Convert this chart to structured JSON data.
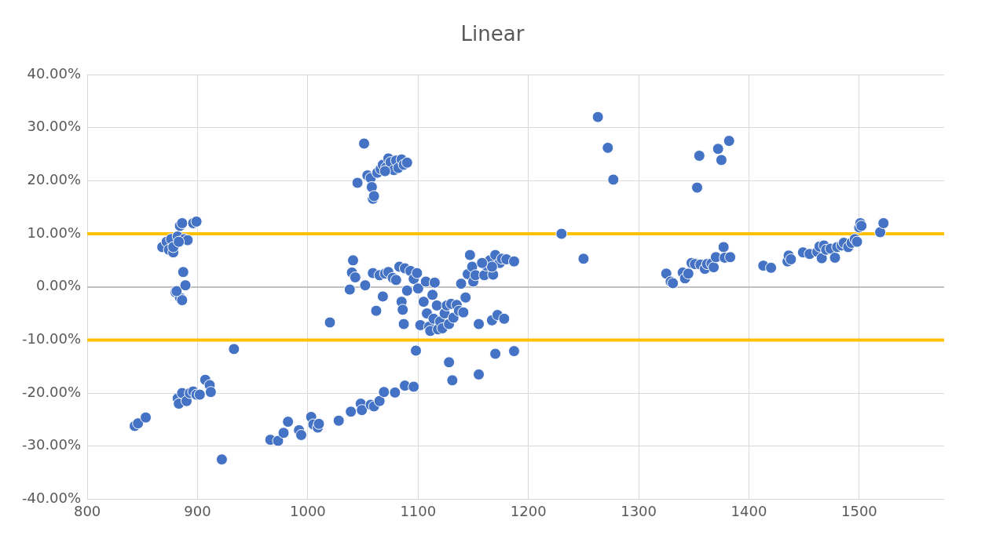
{
  "chart_data": {
    "type": "scatter",
    "title": "Linear",
    "marker": "circle",
    "grid": true,
    "legend": false,
    "xlim": [
      800,
      1577
    ],
    "xticks": [
      800,
      900,
      1000,
      1100,
      1200,
      1300,
      1400,
      1500
    ],
    "ylim": [
      -0.4,
      0.4
    ],
    "yticks": [
      {
        "value": -0.4,
        "label": "-40.00%"
      },
      {
        "value": -0.3,
        "label": "-30.00%"
      },
      {
        "value": -0.2,
        "label": "-20.00%"
      },
      {
        "value": -0.1,
        "label": "-10.00%"
      },
      {
        "value": 0,
        "label": "0.00%"
      },
      {
        "value": 0.1,
        "label": "10.00%"
      },
      {
        "value": 0.2,
        "label": "20.00%"
      },
      {
        "value": 0.3,
        "label": "30.00%"
      },
      {
        "value": 0.4,
        "label": "40.00%"
      }
    ],
    "ref_lines": [
      {
        "axis": "y",
        "value": 0.1,
        "color": "#ffc000"
      },
      {
        "axis": "y",
        "value": -0.1,
        "color": "#ffc000"
      }
    ],
    "series": [
      {
        "color": "#4472c4",
        "x": [
          868,
          872,
          874,
          876,
          878,
          882,
          884,
          886,
          888,
          891,
          896,
          899,
          878,
          883,
          880,
          884,
          886,
          881,
          887,
          889,
          843,
          846,
          853,
          882,
          883,
          886,
          890,
          893,
          896,
          899,
          902,
          907,
          911,
          912,
          922,
          933,
          966,
          973,
          978,
          982,
          992,
          994,
          1003,
          1005,
          1009,
          1010,
          1028,
          1039,
          1048,
          1049,
          1057,
          1060,
          1065,
          1069,
          1079,
          1088,
          1096,
          1098,
          1128,
          1131,
          1155,
          1170,
          1187,
          1045,
          1051,
          1054,
          1057,
          1058,
          1059,
          1060,
          1063,
          1066,
          1068,
          1071,
          1073,
          1075,
          1078,
          1080,
          1082,
          1085,
          1087,
          1090,
          1070,
          1038,
          1040,
          1041,
          1043,
          1052,
          1059,
          1062,
          1065,
          1068,
          1070,
          1073,
          1077,
          1080,
          1083,
          1085,
          1086,
          1087,
          1088,
          1090,
          1093,
          1096,
          1099,
          1100,
          1020,
          1102,
          1105,
          1107,
          1108,
          1110,
          1111,
          1113,
          1114,
          1115,
          1117,
          1118,
          1120,
          1122,
          1124,
          1126,
          1128,
          1130,
          1132,
          1135,
          1137,
          1139,
          1141,
          1143,
          1145,
          1147,
          1149,
          1150,
          1152,
          1155,
          1160,
          1162,
          1165,
          1167,
          1168,
          1170,
          1172,
          1174,
          1176,
          1178,
          1180,
          1187,
          1167,
          1158,
          1230,
          1250,
          1263,
          1272,
          1277,
          1325,
          1329,
          1331,
          1340,
          1342,
          1345,
          1348,
          1351,
          1353,
          1355,
          1356,
          1360,
          1362,
          1366,
          1368,
          1370,
          1372,
          1375,
          1377,
          1378,
          1382,
          1383,
          1413,
          1420,
          1435,
          1436,
          1438,
          1449,
          1455,
          1462,
          1464,
          1466,
          1468,
          1470,
          1474,
          1478,
          1480,
          1484,
          1486,
          1490,
          1493,
          1496,
          1498,
          1500,
          1501,
          1502,
          1519,
          1522
        ],
        "values": [
          0.075,
          0.085,
          0.07,
          0.09,
          0.065,
          0.095,
          0.115,
          0.12,
          0.09,
          0.088,
          0.12,
          0.123,
          0.075,
          0.085,
          -0.01,
          -0.02,
          -0.025,
          -0.008,
          0.028,
          0.003,
          -0.262,
          -0.257,
          -0.246,
          -0.21,
          -0.22,
          -0.2,
          -0.215,
          -0.2,
          -0.197,
          -0.203,
          -0.203,
          -0.175,
          -0.185,
          -0.198,
          -0.325,
          -0.117,
          -0.288,
          -0.29,
          -0.275,
          -0.254,
          -0.27,
          -0.279,
          -0.245,
          -0.259,
          -0.265,
          -0.258,
          -0.252,
          -0.235,
          -0.22,
          -0.232,
          -0.222,
          -0.225,
          -0.215,
          -0.198,
          -0.199,
          -0.186,
          -0.188,
          -0.12,
          -0.142,
          -0.176,
          -0.165,
          -0.126,
          -0.121,
          0.196,
          0.27,
          0.21,
          0.205,
          0.188,
          0.166,
          0.171,
          0.215,
          0.222,
          0.23,
          0.225,
          0.242,
          0.235,
          0.22,
          0.238,
          0.224,
          0.24,
          0.23,
          0.234,
          0.218,
          -0.005,
          0.027,
          0.05,
          0.018,
          0.003,
          0.026,
          -0.045,
          0.022,
          -0.018,
          0.025,
          0.028,
          0.017,
          0.013,
          0.038,
          -0.028,
          -0.043,
          -0.07,
          0.035,
          -0.007,
          0.03,
          0.015,
          0.026,
          -0.003,
          -0.067,
          -0.072,
          -0.028,
          0.01,
          -0.05,
          -0.075,
          -0.083,
          -0.015,
          -0.06,
          0.008,
          -0.035,
          -0.08,
          -0.065,
          -0.078,
          -0.05,
          -0.035,
          -0.07,
          -0.032,
          -0.058,
          -0.034,
          -0.045,
          0.006,
          -0.048,
          -0.02,
          0.024,
          0.06,
          0.038,
          0.01,
          0.022,
          -0.07,
          0.022,
          0.04,
          0.05,
          -0.063,
          0.023,
          0.06,
          -0.053,
          0.045,
          0.053,
          -0.06,
          0.052,
          0.048,
          0.038,
          0.045,
          0.1,
          0.053,
          0.32,
          0.262,
          0.202,
          0.025,
          0.01,
          0.007,
          0.027,
          0.016,
          0.025,
          0.045,
          0.043,
          0.187,
          0.247,
          0.042,
          0.034,
          0.043,
          0.044,
          0.037,
          0.056,
          0.26,
          0.239,
          0.075,
          0.055,
          0.275,
          0.056,
          0.04,
          0.036,
          0.048,
          0.059,
          0.052,
          0.065,
          0.062,
          0.066,
          0.076,
          0.054,
          0.078,
          0.07,
          0.072,
          0.055,
          0.075,
          0.078,
          0.083,
          0.075,
          0.083,
          0.09,
          0.085,
          0.112,
          0.12,
          0.115,
          0.103,
          0.12
        ]
      }
    ]
  }
}
